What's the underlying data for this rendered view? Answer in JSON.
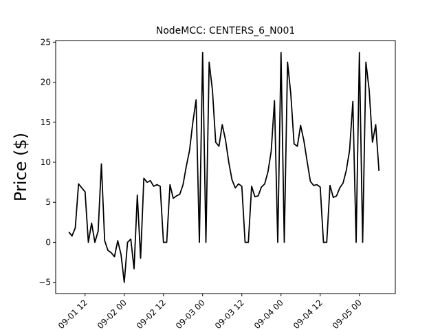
{
  "chart_data": {
    "type": "line",
    "title": "NodeMCC: CENTERS_6_N001",
    "ylabel": "Price ($)",
    "x": [
      "09-01 07",
      "09-01 08",
      "09-01 09",
      "09-01 10",
      "09-01 11",
      "09-01 12",
      "09-01 13",
      "09-01 14",
      "09-01 15",
      "09-01 16",
      "09-01 17",
      "09-01 18",
      "09-01 19",
      "09-01 20",
      "09-01 21",
      "09-01 22",
      "09-01 23",
      "09-02 00",
      "09-02 01",
      "09-02 02",
      "09-02 03",
      "09-02 04",
      "09-02 05",
      "09-02 06",
      "09-02 07",
      "09-02 08",
      "09-02 09",
      "09-02 10",
      "09-02 11",
      "09-02 12",
      "09-02 13",
      "09-02 14",
      "09-02 15",
      "09-02 16",
      "09-02 17",
      "09-02 18",
      "09-02 19",
      "09-02 20",
      "09-02 21",
      "09-02 22",
      "09-02 23",
      "09-03 00",
      "09-03 01",
      "09-03 02",
      "09-03 03",
      "09-03 04",
      "09-03 05",
      "09-03 06",
      "09-03 07",
      "09-03 08",
      "09-03 09",
      "09-03 10",
      "09-03 11",
      "09-03 12",
      "09-03 13",
      "09-03 14",
      "09-03 15",
      "09-03 16",
      "09-03 17",
      "09-03 18",
      "09-03 19",
      "09-03 20",
      "09-03 21",
      "09-03 22",
      "09-03 23",
      "09-04 00",
      "09-04 01",
      "09-04 02",
      "09-04 03",
      "09-04 04",
      "09-04 05",
      "09-04 06",
      "09-04 07",
      "09-04 08",
      "09-04 09",
      "09-04 10",
      "09-04 11",
      "09-04 12",
      "09-04 13",
      "09-04 14",
      "09-04 15",
      "09-04 16",
      "09-04 17",
      "09-04 18",
      "09-04 19",
      "09-04 20",
      "09-04 21",
      "09-04 22",
      "09-04 23",
      "09-05 00",
      "09-05 01",
      "09-05 02",
      "09-05 03",
      "09-05 04",
      "09-05 05",
      "09-05 06"
    ],
    "series": [
      {
        "color": "#000000",
        "values": [
          1.3,
          0.8,
          1.8,
          7.3,
          6.8,
          6.3,
          0,
          2.4,
          0,
          1.4,
          9.8,
          0.2,
          -1.0,
          -1.3,
          -1.8,
          0.2,
          -1.5,
          -5.0,
          0,
          0.4,
          -3.3,
          5.9,
          -2.0,
          8.0,
          7.5,
          7.7,
          7.0,
          7.2,
          7.0,
          0,
          0,
          7.2,
          5.5,
          5.8,
          6.0,
          7.2,
          9.5,
          11.5,
          15.0,
          17.8,
          0,
          23.7,
          0,
          22.5,
          19.0,
          12.5,
          12.0,
          14.7,
          12.8,
          10.0,
          7.8,
          6.8,
          7.3,
          7.0,
          0,
          0,
          7.0,
          5.7,
          5.8,
          6.9,
          7.3,
          8.8,
          11.4,
          17.7,
          0,
          23.7,
          0,
          22.5,
          18.5,
          12.3,
          12.0,
          14.6,
          12.7,
          10.1,
          7.6,
          7.1,
          7.2,
          6.9,
          0,
          0,
          7.1,
          5.6,
          5.8,
          6.8,
          7.4,
          9.0,
          11.5,
          17.6,
          0,
          23.7,
          0,
          22.5,
          19.0,
          12.5,
          14.7,
          8.9
        ]
      }
    ],
    "xlim": [
      "09-01 03",
      "09-05 11"
    ],
    "xticks": [
      "09-01 12",
      "09-02 00",
      "09-02 12",
      "09-03 00",
      "09-03 12",
      "09-04 00",
      "09-04 12",
      "09-05 00"
    ],
    "ylim": [
      -6.4,
      25.2
    ],
    "yticks": [
      {
        "value": -5,
        "label": "−5"
      },
      0,
      5,
      10,
      15,
      20,
      25
    ]
  }
}
